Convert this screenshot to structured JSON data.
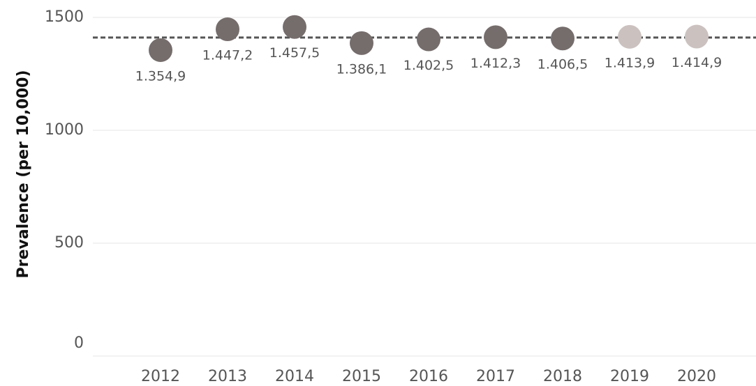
{
  "chart_data": {
    "type": "scatter",
    "y_axis_label": "Prevalence (per 10,000)",
    "categories": [
      "2012",
      "2013",
      "2014",
      "2015",
      "2016",
      "2017",
      "2018",
      "2019",
      "2020"
    ],
    "values": [
      1354.9,
      1447.2,
      1457.5,
      1386.1,
      1402.5,
      1412.3,
      1406.5,
      1413.9,
      1414.9
    ],
    "value_labels": [
      "1.354,9",
      "1.447,2",
      "1.457,5",
      "1.386,1",
      "1.402,5",
      "1.412,3",
      "1.406,5",
      "1.413,9",
      "1.414,9"
    ],
    "colors": [
      "#756d6c",
      "#756d6c",
      "#756d6c",
      "#756d6c",
      "#756d6c",
      "#756d6c",
      "#756d6c",
      "#cbc2c0",
      "#cbc2c0"
    ],
    "reference_line": 1410.6,
    "reference_color": "#555555",
    "ylim": [
      0,
      1577
    ],
    "yticks": [
      0,
      500,
      1000,
      1500
    ],
    "grid": true
  }
}
